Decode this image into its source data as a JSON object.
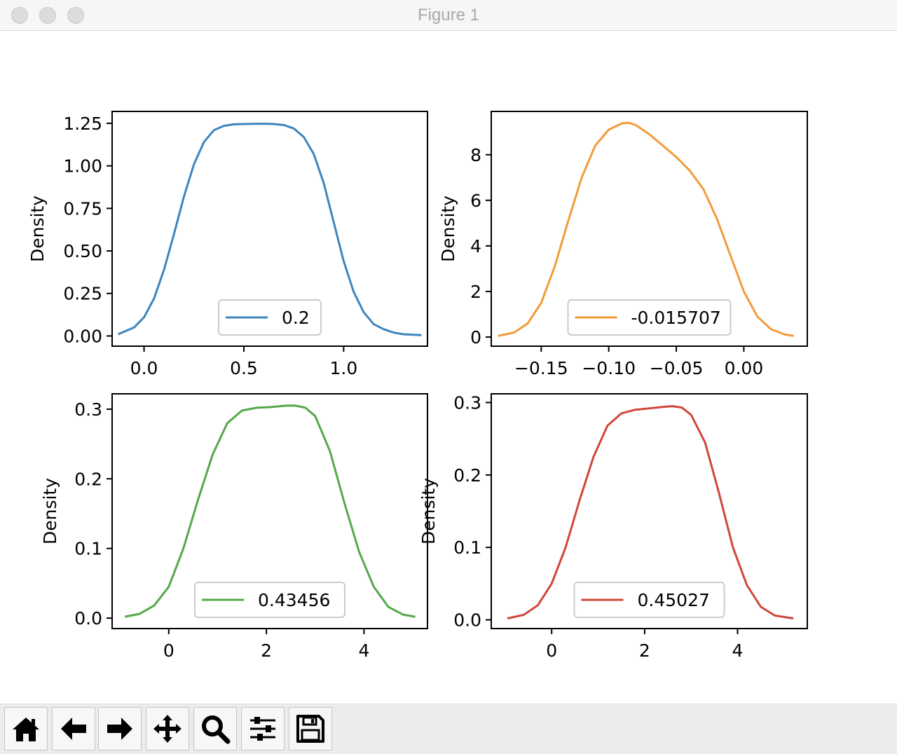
{
  "window": {
    "title": "Figure 1"
  },
  "toolbar": {
    "buttons": [
      {
        "name": "home-button",
        "icon": "home-icon"
      },
      {
        "name": "back-button",
        "icon": "arrow-left-icon"
      },
      {
        "name": "forward-button",
        "icon": "arrow-right-icon"
      },
      {
        "name": "pan-button",
        "icon": "move-icon"
      },
      {
        "name": "zoom-button",
        "icon": "magnifier-icon"
      },
      {
        "name": "configure-subplots-button",
        "icon": "sliders-icon"
      },
      {
        "name": "save-button",
        "icon": "floppy-disk-icon"
      }
    ]
  },
  "chart_data": [
    {
      "type": "line",
      "ylabel": "Density",
      "xlim": [
        -0.16,
        1.42
      ],
      "ylim": [
        -0.06,
        1.32
      ],
      "xticks": [
        0.0,
        0.5,
        1.0
      ],
      "xtick_labels": [
        "0.0",
        "0.5",
        "1.0"
      ],
      "yticks": [
        0.0,
        0.25,
        0.5,
        0.75,
        1.0,
        1.25
      ],
      "ytick_labels": [
        "0.00",
        "0.25",
        "0.50",
        "0.75",
        "1.00",
        "1.25"
      ],
      "legend": {
        "placement": "lower center"
      },
      "color": "#3f85bc",
      "series": [
        {
          "name": "0.2",
          "x": [
            -0.13,
            -0.05,
            0.0,
            0.05,
            0.1,
            0.15,
            0.2,
            0.25,
            0.3,
            0.35,
            0.4,
            0.45,
            0.5,
            0.55,
            0.6,
            0.65,
            0.7,
            0.75,
            0.8,
            0.85,
            0.9,
            0.95,
            1.0,
            1.05,
            1.1,
            1.15,
            1.2,
            1.25,
            1.3,
            1.39
          ],
          "y": [
            0.01,
            0.05,
            0.11,
            0.22,
            0.39,
            0.6,
            0.82,
            1.01,
            1.14,
            1.21,
            1.235,
            1.244,
            1.246,
            1.247,
            1.248,
            1.246,
            1.24,
            1.22,
            1.17,
            1.07,
            0.9,
            0.67,
            0.44,
            0.26,
            0.14,
            0.07,
            0.04,
            0.02,
            0.01,
            0.005
          ]
        }
      ]
    },
    {
      "type": "line",
      "ylabel": "Density",
      "xlim": [
        -0.187,
        0.047
      ],
      "ylim": [
        -0.4,
        9.9
      ],
      "xticks": [
        -0.15,
        -0.1,
        -0.05,
        0.0
      ],
      "xtick_labels": [
        "−0.15",
        "−0.10",
        "−0.05",
        "0.00"
      ],
      "yticks": [
        0,
        2,
        4,
        6,
        8
      ],
      "ytick_labels": [
        "0",
        "2",
        "4",
        "6",
        "8"
      ],
      "legend": {
        "placement": "lower center"
      },
      "color": "#f39b3a",
      "series": [
        {
          "name": "-0.015707",
          "x": [
            -0.182,
            -0.17,
            -0.16,
            -0.15,
            -0.14,
            -0.13,
            -0.12,
            -0.11,
            -0.1,
            -0.09,
            -0.085,
            -0.08,
            -0.07,
            -0.06,
            -0.05,
            -0.04,
            -0.03,
            -0.02,
            -0.01,
            0.0,
            0.01,
            0.02,
            0.03,
            0.037
          ],
          "y": [
            0.05,
            0.2,
            0.6,
            1.5,
            3.1,
            5.1,
            7.0,
            8.4,
            9.1,
            9.38,
            9.4,
            9.3,
            8.9,
            8.4,
            7.9,
            7.3,
            6.5,
            5.2,
            3.6,
            2.0,
            0.9,
            0.35,
            0.12,
            0.05
          ]
        }
      ]
    },
    {
      "type": "line",
      "ylabel": "Density",
      "xlim": [
        -1.16,
        5.3
      ],
      "ylim": [
        -0.015,
        0.322
      ],
      "xticks": [
        0,
        2,
        4
      ],
      "xtick_labels": [
        "0",
        "2",
        "4"
      ],
      "yticks": [
        0.0,
        0.1,
        0.2,
        0.3
      ],
      "ytick_labels": [
        "0.0",
        "0.1",
        "0.2",
        "0.3"
      ],
      "legend": {
        "placement": "lower center"
      },
      "color": "#55a84a",
      "series": [
        {
          "name": "0.43456",
          "x": [
            -0.9,
            -0.6,
            -0.3,
            0.0,
            0.3,
            0.6,
            0.9,
            1.2,
            1.5,
            1.8,
            2.1,
            2.4,
            2.6,
            2.8,
            3.0,
            3.3,
            3.6,
            3.9,
            4.2,
            4.5,
            4.8,
            5.05
          ],
          "y": [
            0.002,
            0.006,
            0.018,
            0.045,
            0.1,
            0.17,
            0.235,
            0.28,
            0.298,
            0.302,
            0.303,
            0.305,
            0.305,
            0.302,
            0.29,
            0.24,
            0.165,
            0.095,
            0.045,
            0.016,
            0.005,
            0.002
          ]
        }
      ]
    },
    {
      "type": "line",
      "ylabel": "Density",
      "xlim": [
        -1.3,
        5.5
      ],
      "ylim": [
        -0.012,
        0.312
      ],
      "xticks": [
        0,
        2,
        4
      ],
      "xtick_labels": [
        "0",
        "2",
        "4"
      ],
      "yticks": [
        0.0,
        0.1,
        0.2,
        0.3
      ],
      "ytick_labels": [
        "0.0",
        "0.1",
        "0.2",
        "0.3"
      ],
      "legend": {
        "placement": "lower center"
      },
      "color": "#d0473a",
      "series": [
        {
          "name": "0.45027",
          "x": [
            -0.95,
            -0.6,
            -0.3,
            0.0,
            0.3,
            0.6,
            0.9,
            1.2,
            1.5,
            1.8,
            2.1,
            2.4,
            2.6,
            2.8,
            3.0,
            3.3,
            3.6,
            3.9,
            4.2,
            4.5,
            4.8,
            5.2
          ],
          "y": [
            0.002,
            0.007,
            0.02,
            0.05,
            0.1,
            0.165,
            0.225,
            0.268,
            0.285,
            0.29,
            0.292,
            0.294,
            0.295,
            0.293,
            0.283,
            0.245,
            0.175,
            0.1,
            0.048,
            0.018,
            0.006,
            0.002
          ]
        }
      ]
    }
  ]
}
